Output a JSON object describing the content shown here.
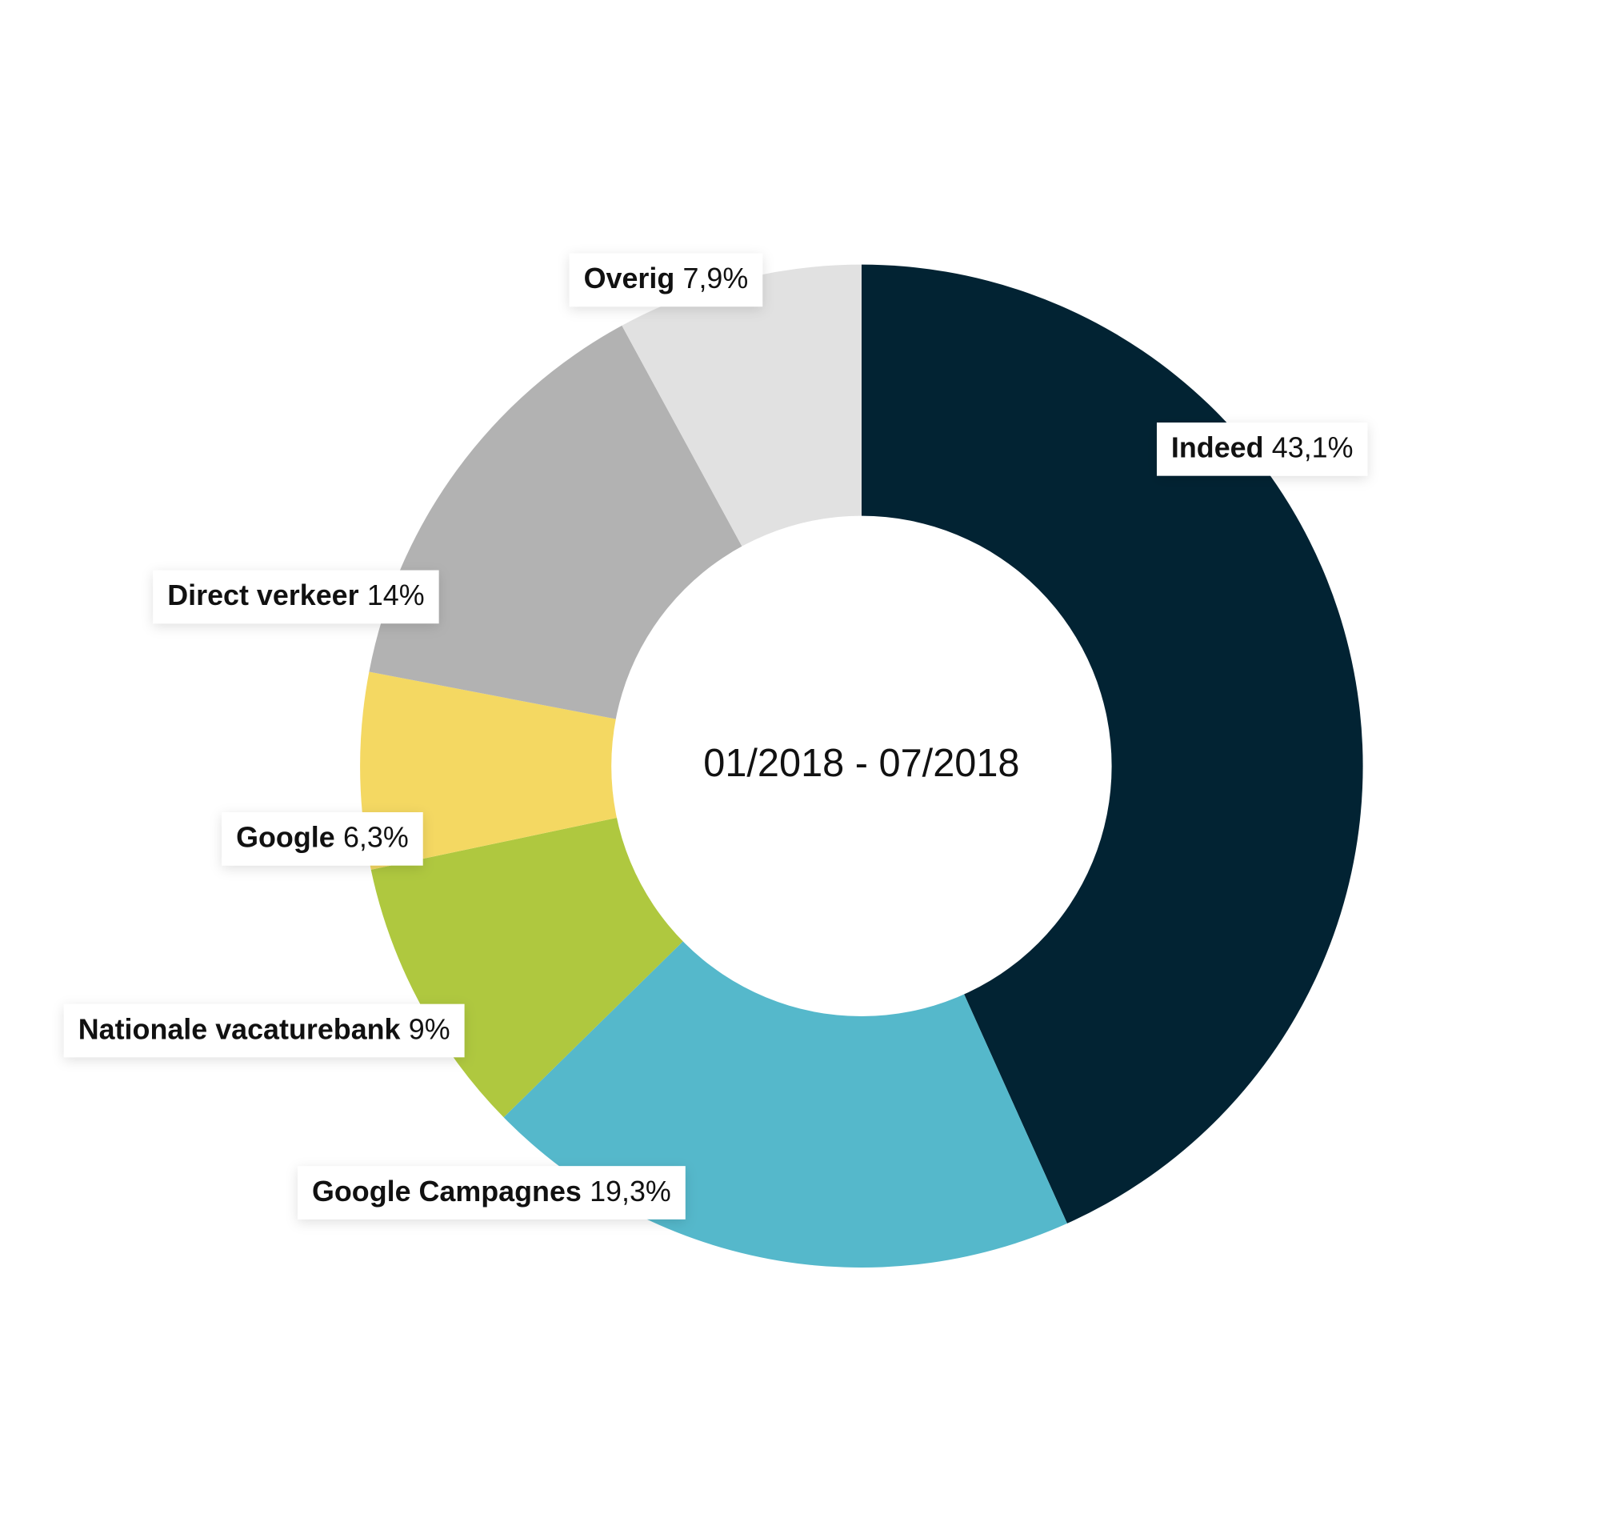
{
  "chart_data": {
    "type": "donut",
    "center_text": "01/2018 - 07/2018",
    "categories": [
      "Indeed",
      "Google Campagnes",
      "Nationale vacaturebank",
      "Google",
      "Direct verkeer",
      "Overig"
    ],
    "values": [
      43.1,
      19.3,
      9,
      6.3,
      14,
      7.9
    ],
    "value_labels": [
      "43,1%",
      "19,3%",
      "9%",
      "6,3%",
      "14%",
      "7,9%"
    ],
    "colors": [
      "#022333",
      "#55b8cb",
      "#afc83f",
      "#f4d862",
      "#b2b2b2",
      "#e1e1e1"
    ]
  }
}
